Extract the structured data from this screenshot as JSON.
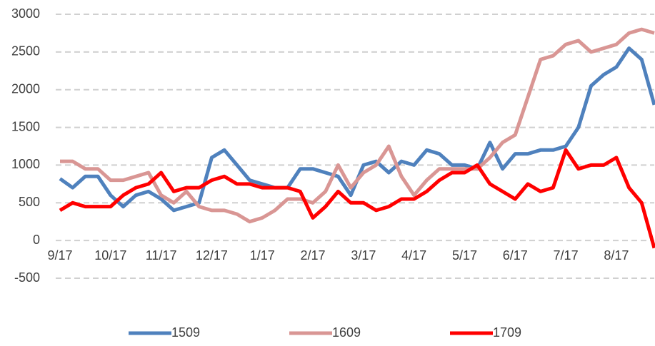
{
  "chart_data": {
    "type": "line",
    "categories": [
      "9/17",
      null,
      null,
      null,
      "10/17",
      null,
      null,
      null,
      "11/17",
      null,
      null,
      null,
      "12/17",
      null,
      null,
      null,
      "1/17",
      null,
      null,
      null,
      "2/17",
      null,
      null,
      null,
      "3/17",
      null,
      null,
      null,
      "4/17",
      null,
      null,
      null,
      "5/17",
      null,
      null,
      null,
      "6/17",
      null,
      null,
      null,
      "7/17",
      null,
      null,
      null,
      "8/17",
      null,
      null,
      null
    ],
    "series": [
      {
        "name": "1509",
        "color": "#4f81bd",
        "values": [
          820,
          700,
          850,
          850,
          600,
          450,
          600,
          650,
          550,
          400,
          450,
          500,
          1100,
          1200,
          1000,
          800,
          750,
          700,
          700,
          950,
          950,
          900,
          850,
          600,
          1000,
          1050,
          900,
          1050,
          1000,
          1200,
          1150,
          1000,
          1000,
          950,
          1300,
          950,
          1150,
          1150,
          1200,
          1200,
          1250,
          1500,
          2050,
          2200,
          2300,
          2550,
          2400,
          1800
        ]
      },
      {
        "name": "1609",
        "color": "#d99694",
        "values": [
          1050,
          1050,
          950,
          950,
          800,
          800,
          850,
          900,
          600,
          500,
          650,
          450,
          400,
          400,
          350,
          250,
          300,
          400,
          550,
          550,
          500,
          650,
          1000,
          700,
          900,
          1000,
          1250,
          850,
          600,
          800,
          950,
          950,
          950,
          950,
          1100,
          1300,
          1400,
          1900,
          2400,
          2450,
          2600,
          2650,
          2500,
          2550,
          2600,
          2750,
          2800,
          2750
        ]
      },
      {
        "name": "1709",
        "color": "#ff0000",
        "values": [
          400,
          500,
          450,
          450,
          450,
          600,
          700,
          750,
          900,
          650,
          700,
          700,
          800,
          850,
          750,
          750,
          700,
          700,
          700,
          650,
          300,
          450,
          650,
          500,
          500,
          400,
          450,
          550,
          550,
          650,
          800,
          900,
          900,
          1000,
          750,
          650,
          550,
          750,
          650,
          700,
          1200,
          950,
          1000,
          1000,
          1100,
          700,
          500,
          -100
        ]
      }
    ],
    "ylim": [
      -500,
      3000
    ],
    "yticks": [
      -500,
      0,
      500,
      1000,
      1500,
      2000,
      2500,
      3000
    ],
    "grid": true
  }
}
